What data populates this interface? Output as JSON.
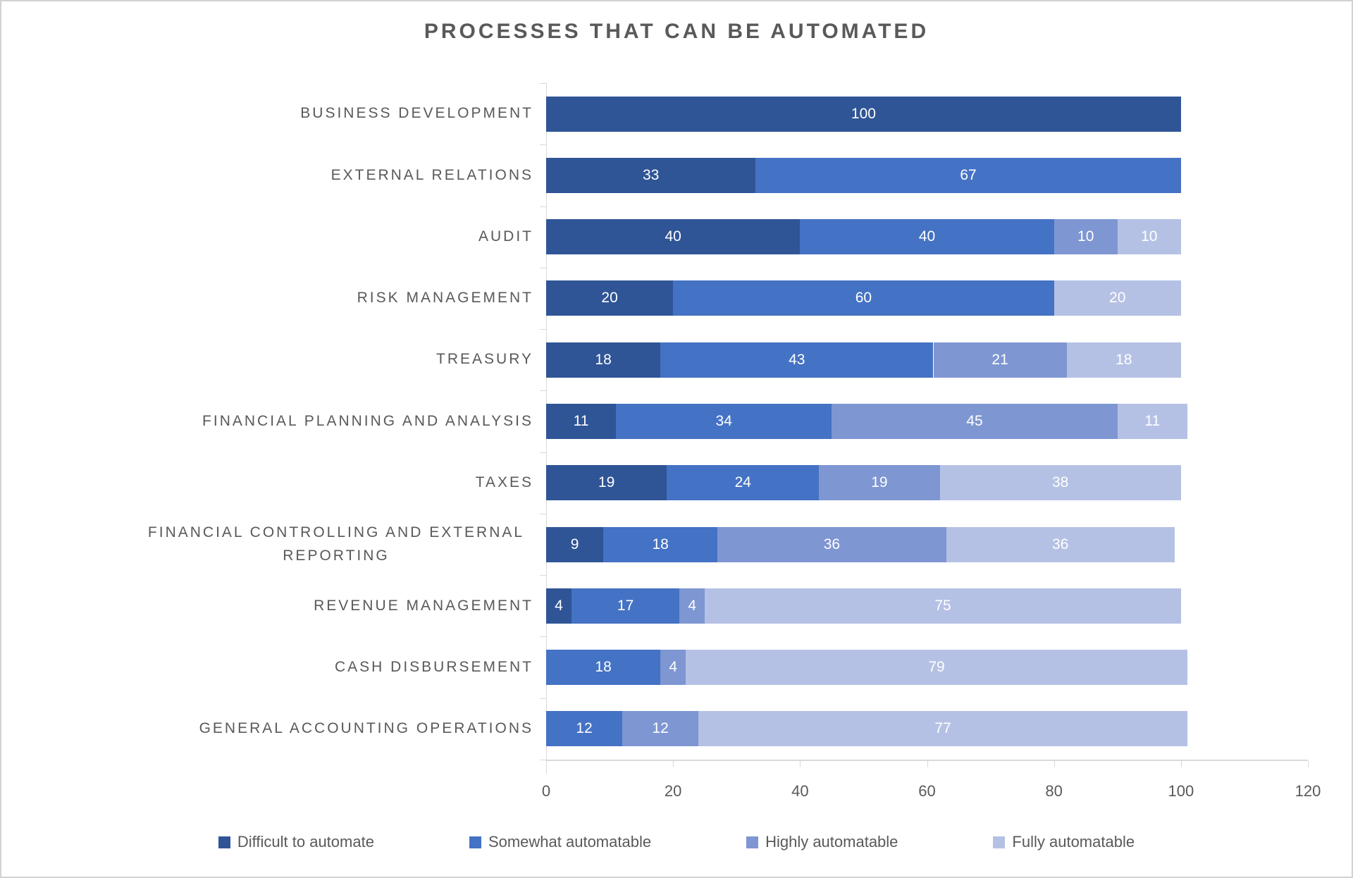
{
  "title": "PROCESSES THAT CAN BE AUTOMATED",
  "colors": {
    "text": "#595959",
    "axis": "#D9D9D9",
    "background": "#FFFFFF",
    "border": "#D2D2D2",
    "series_difficult": "#2F5596",
    "series_somewhat": "#4472C4",
    "series_highly": "#7E96D2",
    "series_fully": "#B5C1E4"
  },
  "chart_data": {
    "type": "bar",
    "orientation": "horizontal",
    "stacked": true,
    "title": "PROCESSES THAT CAN BE AUTOMATED",
    "categories": [
      "BUSINESS DEVELOPMENT",
      "EXTERNAL RELATIONS",
      "AUDIT",
      "RISK MANAGEMENT",
      "TREASURY",
      "FINANCIAL PLANNING AND ANALYSIS",
      "TAXES",
      "FINANCIAL CONTROLLING AND EXTERNAL REPORTING",
      "REVENUE MANAGEMENT",
      "CASH DISBURSEMENT",
      "GENERAL ACCOUNTING OPERATIONS"
    ],
    "series": [
      {
        "name": "Difficult to automate",
        "color": "#2F5596",
        "values": [
          100,
          33,
          40,
          20,
          18,
          11,
          19,
          9,
          4,
          0,
          0
        ]
      },
      {
        "name": "Somewhat automatable",
        "color": "#4472C4",
        "values": [
          0,
          67,
          40,
          60,
          43,
          34,
          24,
          18,
          17,
          18,
          12
        ]
      },
      {
        "name": "Highly automatable",
        "color": "#7E96D2",
        "values": [
          0,
          0,
          10,
          0,
          21,
          45,
          19,
          36,
          4,
          4,
          12
        ]
      },
      {
        "name": "Fully automatable",
        "color": "#B5C1E4",
        "values": [
          0,
          0,
          10,
          20,
          18,
          11,
          38,
          36,
          75,
          79,
          77
        ]
      }
    ],
    "xlim": [
      0,
      120
    ],
    "x_ticks": [
      0,
      20,
      40,
      60,
      80,
      100,
      120
    ],
    "legend_position": "bottom",
    "grid": false,
    "data_labels": "values shown in white, centered inside each segment"
  }
}
